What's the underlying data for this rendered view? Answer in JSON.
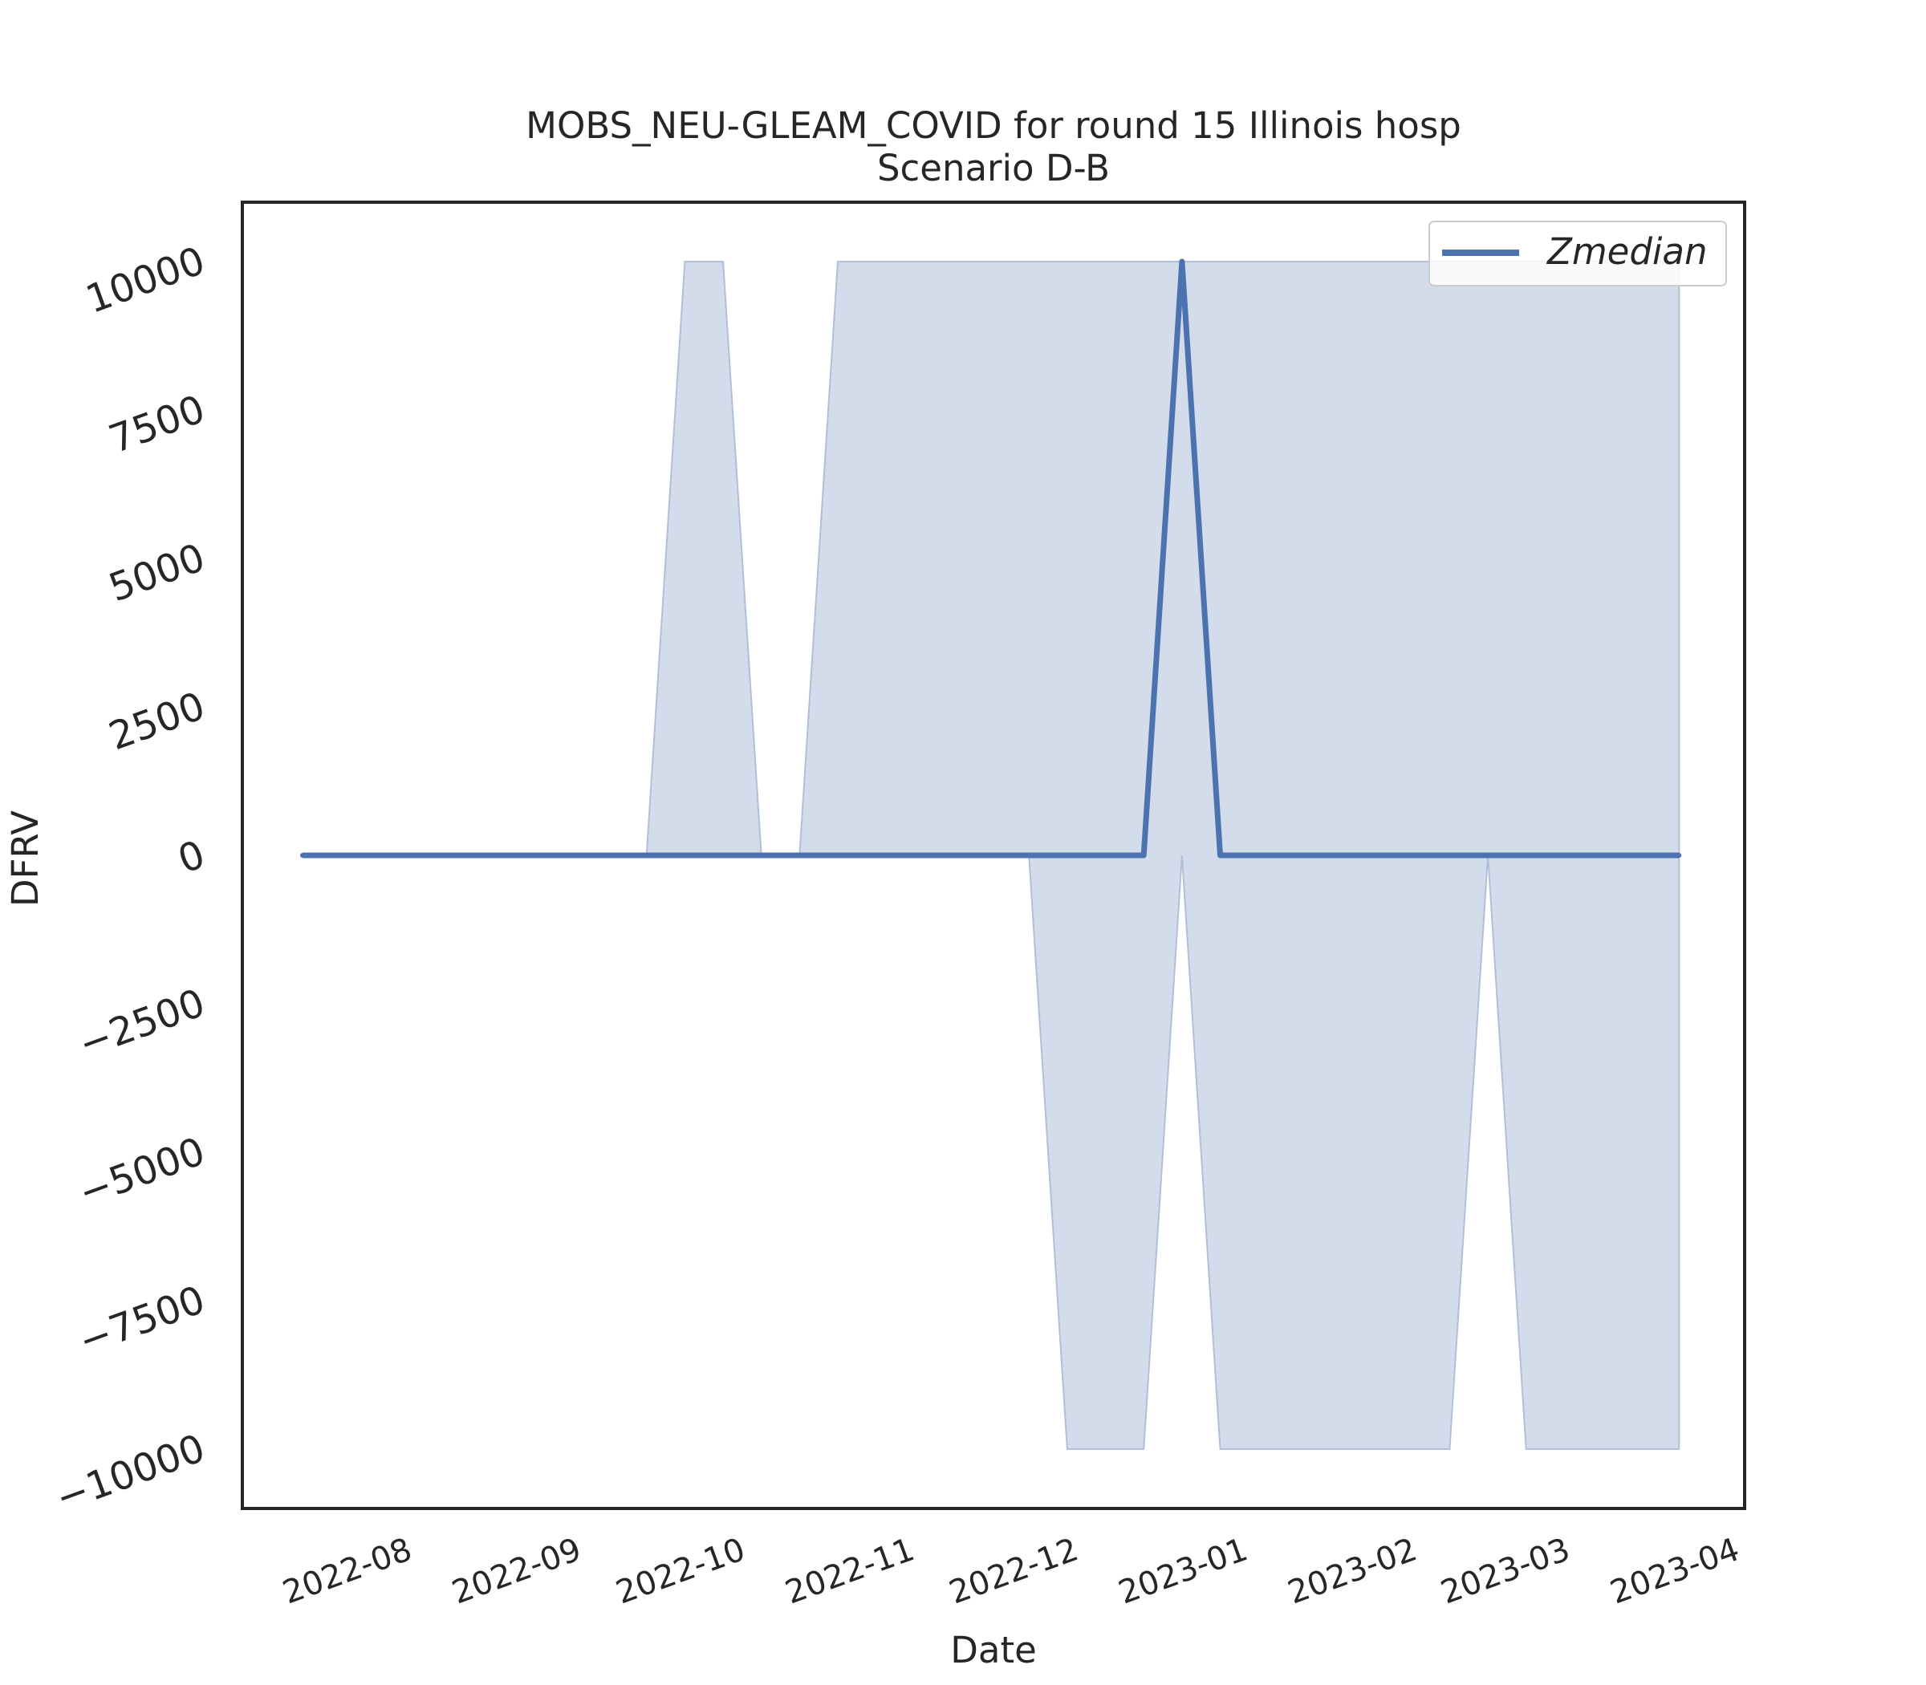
{
  "chart_data": {
    "type": "line",
    "title": "MOBS_NEU-GLEAM_COVID for round 15 Illinois hosp",
    "subtitle": "Scenario D-B",
    "xlabel": "Date",
    "ylabel": "DFRV",
    "x_ticks": [
      "2022-08",
      "2022-09",
      "2022-10",
      "2022-11",
      "2022-12",
      "2023-01",
      "2023-02",
      "2023-03",
      "2023-04"
    ],
    "y_ticks": [
      10000,
      7500,
      5000,
      2500,
      0,
      -2500,
      -5000,
      -7500,
      -10000
    ],
    "xlim": [
      "2022-07-05",
      "2023-04-06"
    ],
    "ylim": [
      -11000,
      11000
    ],
    "legend": {
      "position": "top-right",
      "entries": [
        "Zmedian"
      ]
    },
    "grid": false,
    "colors": {
      "line": "#4c72b0",
      "band_fill": "#4c72b0",
      "band_edge": "#b0c0d8",
      "frame": "#262626"
    },
    "x": [
      "2022-07-16",
      "2022-07-23",
      "2022-07-30",
      "2022-08-06",
      "2022-08-13",
      "2022-08-20",
      "2022-08-27",
      "2022-09-03",
      "2022-09-10",
      "2022-09-17",
      "2022-09-24",
      "2022-10-01",
      "2022-10-08",
      "2022-10-15",
      "2022-10-22",
      "2022-10-29",
      "2022-11-05",
      "2022-11-12",
      "2022-11-19",
      "2022-11-26",
      "2022-12-03",
      "2022-12-10",
      "2022-12-17",
      "2022-12-24",
      "2022-12-31",
      "2023-01-07",
      "2023-01-14",
      "2023-01-21",
      "2023-01-28",
      "2023-02-04",
      "2023-02-11",
      "2023-02-18",
      "2023-02-25",
      "2023-03-04",
      "2023-03-11",
      "2023-03-18",
      "2023-03-25"
    ],
    "series": [
      {
        "name": "Zmedian",
        "type": "line",
        "values": [
          0,
          0,
          0,
          0,
          0,
          0,
          0,
          0,
          0,
          0,
          0,
          0,
          0,
          0,
          0,
          0,
          0,
          0,
          0,
          0,
          0,
          0,
          0,
          10000,
          0,
          0,
          0,
          0,
          0,
          0,
          0,
          0,
          0,
          0,
          0,
          0,
          0
        ]
      },
      {
        "type": "band",
        "lower": [
          0,
          0,
          0,
          0,
          0,
          0,
          0,
          0,
          0,
          0,
          0,
          0,
          0,
          0,
          0,
          0,
          0,
          0,
          0,
          0,
          -10000,
          -10000,
          -10000,
          0,
          -10000,
          -10000,
          -10000,
          -10000,
          -10000,
          -10000,
          -10000,
          0,
          -10000,
          -10000,
          -10000,
          -10000,
          -10000
        ],
        "upper": [
          0,
          0,
          0,
          0,
          0,
          0,
          0,
          0,
          0,
          0,
          10000,
          10000,
          0,
          0,
          10000,
          10000,
          10000,
          10000,
          10000,
          10000,
          10000,
          10000,
          10000,
          10000,
          10000,
          10000,
          10000,
          10000,
          10000,
          10000,
          10000,
          10000,
          10000,
          10000,
          10000,
          10000,
          10000
        ]
      }
    ]
  }
}
